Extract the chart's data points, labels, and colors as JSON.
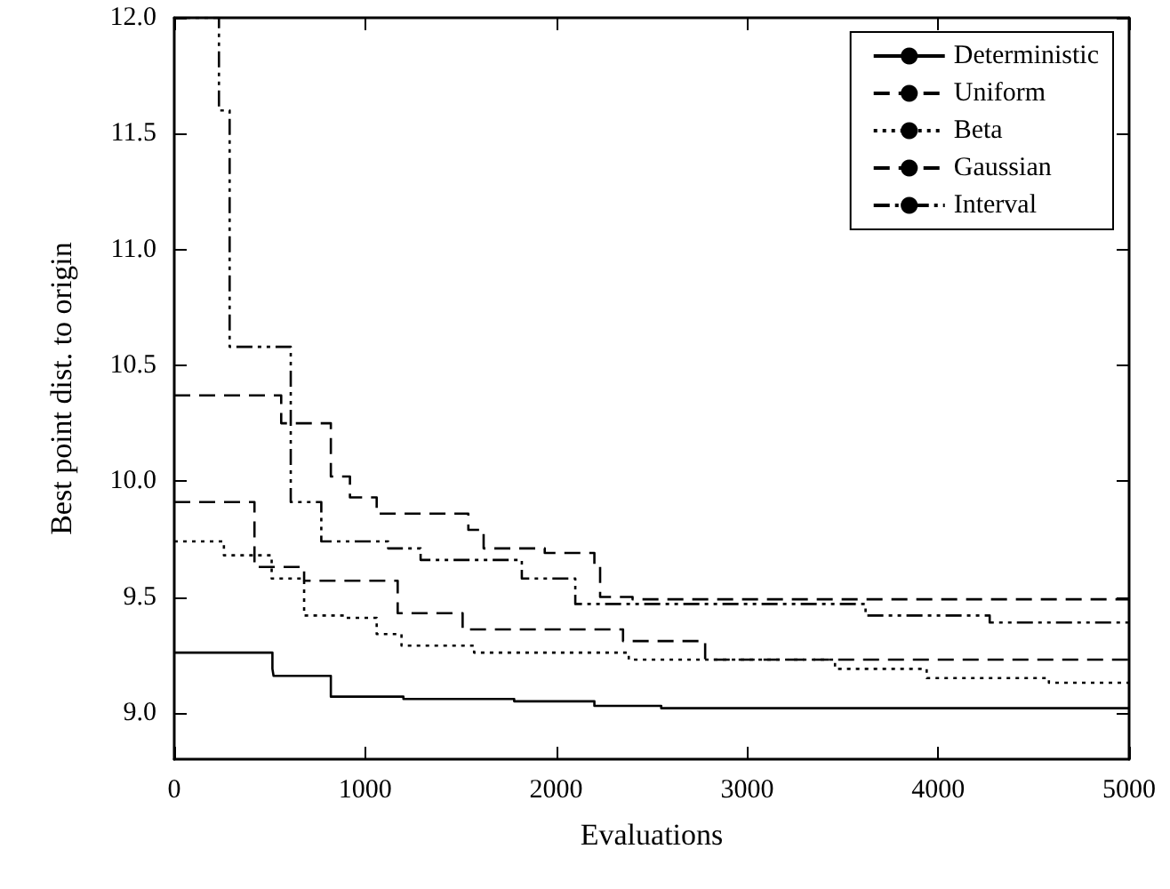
{
  "chart_data": {
    "type": "step",
    "xlabel": "Evaluations",
    "ylabel": "Best point dist. to origin",
    "xlim": [
      0,
      5000
    ],
    "xticks": [
      0,
      1000,
      2000,
      3000,
      4000,
      5000
    ],
    "ylim": [
      8.8,
      12
    ],
    "yticks": [
      {
        "value": 9,
        "label": "9.0"
      },
      {
        "value": 9.5,
        "label": "9.5"
      },
      {
        "value": 10,
        "label": "10.0"
      },
      {
        "value": 10.5,
        "label": "10.5"
      },
      {
        "value": 11,
        "label": "11.0"
      },
      {
        "value": 11.5,
        "label": "11.5"
      },
      {
        "value": 12,
        "label": "12.0"
      }
    ],
    "grid": false,
    "legend": "top right",
    "marker": "none",
    "series": [
      {
        "name": "Deterministic",
        "color": "#000000",
        "line_style": "solid",
        "x": [
          0,
          514,
          520,
          820,
          1200,
          1780,
          2200,
          2550,
          5000
        ],
        "values": [
          9.26,
          9.19,
          9.16,
          9.07,
          9.06,
          9.05,
          9.03,
          9.02,
          9.02
        ]
      },
      {
        "name": "Uniform",
        "color": "#000000",
        "line_style": "dashed",
        "x": [
          0,
          420,
          680,
          1170,
          1510,
          2350,
          2780,
          5000
        ],
        "values": [
          9.91,
          9.63,
          9.57,
          9.43,
          9.36,
          9.31,
          9.23,
          9.23
        ]
      },
      {
        "name": "Beta",
        "color": "#000000",
        "line_style": "dotted",
        "x": [
          0,
          260,
          510,
          680,
          900,
          1060,
          1190,
          1570,
          2380,
          3460,
          3940,
          4580,
          5000
        ],
        "values": [
          9.74,
          9.68,
          9.58,
          9.42,
          9.41,
          9.34,
          9.29,
          9.26,
          9.23,
          9.19,
          9.15,
          9.13,
          9.13
        ]
      },
      {
        "name": "Gaussian",
        "color": "#000000",
        "line_style": "dashed",
        "x": [
          0,
          560,
          820,
          920,
          1060,
          1540,
          1620,
          1940,
          2200,
          2230,
          2400,
          5000
        ],
        "values": [
          10.37,
          10.25,
          10.02,
          9.93,
          9.86,
          9.79,
          9.71,
          9.69,
          9.64,
          9.5,
          9.49,
          9.49
        ]
      },
      {
        "name": "Interval",
        "color": "#000000",
        "line_style": "dashdot",
        "x": [
          0,
          234,
          290,
          600,
          610,
          770,
          1120,
          1290,
          1820,
          2100,
          3620,
          4270,
          5000
        ],
        "values": [
          12,
          11.6,
          10.58,
          10.58,
          9.91,
          9.74,
          9.71,
          9.66,
          9.58,
          9.47,
          9.42,
          9.39,
          9.37
        ]
      }
    ]
  }
}
